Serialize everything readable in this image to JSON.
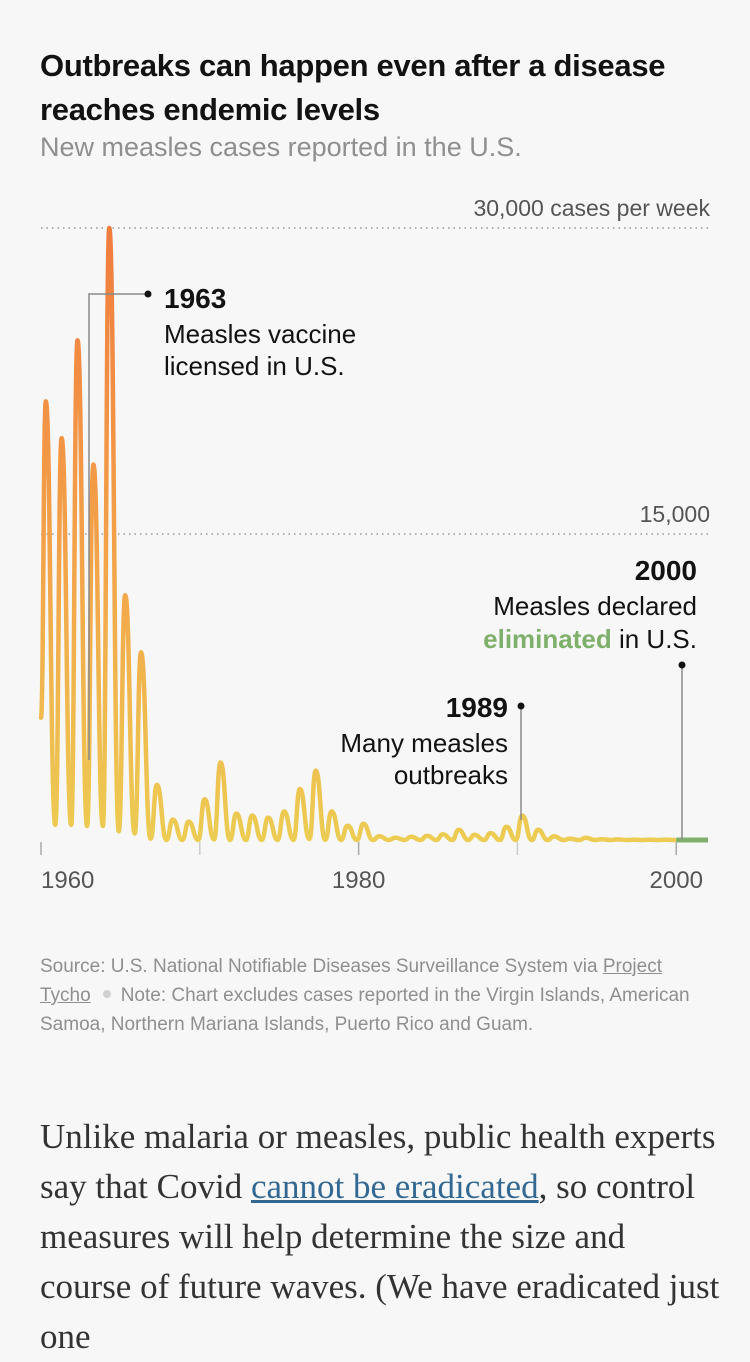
{
  "header": {
    "title": "Outbreaks can happen even after a disease reaches endemic levels",
    "subtitle": "New measles cases reported in the U.S."
  },
  "chart_data": {
    "type": "line",
    "title": "Outbreaks can happen even after a disease reaches endemic levels",
    "subtitle": "New measles cases reported in the U.S.",
    "ylim": [
      0,
      30000
    ],
    "xlim": [
      1960,
      2002
    ],
    "y_gridlines": [
      {
        "value": 30000,
        "label": "30,000 cases per week"
      },
      {
        "value": 15000,
        "label": "15,000"
      }
    ],
    "x_ticks": [
      {
        "value": 1960,
        "label": "1960"
      },
      {
        "value": 1980,
        "label": "1980"
      },
      {
        "value": 2000,
        "label": "2000"
      }
    ],
    "x_minor_ticks": [
      1970,
      1990
    ],
    "peaks": [
      {
        "x": 1960.3,
        "y": 21500
      },
      {
        "x": 1961.3,
        "y": 19700
      },
      {
        "x": 1962.3,
        "y": 24500
      },
      {
        "x": 1963.3,
        "y": 18400
      },
      {
        "x": 1964.3,
        "y": 30000
      },
      {
        "x": 1965.3,
        "y": 12000
      },
      {
        "x": 1966.3,
        "y": 9200
      },
      {
        "x": 1967.3,
        "y": 2700
      },
      {
        "x": 1968.3,
        "y": 1000
      },
      {
        "x": 1969.3,
        "y": 900
      },
      {
        "x": 1970.3,
        "y": 2000
      },
      {
        "x": 1971.3,
        "y": 3800
      },
      {
        "x": 1972.3,
        "y": 1300
      },
      {
        "x": 1973.3,
        "y": 1200
      },
      {
        "x": 1974.3,
        "y": 1100
      },
      {
        "x": 1975.3,
        "y": 1400
      },
      {
        "x": 1976.3,
        "y": 2500
      },
      {
        "x": 1977.3,
        "y": 3400
      },
      {
        "x": 1978.3,
        "y": 1400
      },
      {
        "x": 1979.3,
        "y": 700
      },
      {
        "x": 1980.3,
        "y": 800
      },
      {
        "x": 1981.3,
        "y": 180
      },
      {
        "x": 1982.3,
        "y": 120
      },
      {
        "x": 1983.3,
        "y": 160
      },
      {
        "x": 1984.3,
        "y": 210
      },
      {
        "x": 1985.3,
        "y": 280
      },
      {
        "x": 1986.3,
        "y": 500
      },
      {
        "x": 1987.3,
        "y": 260
      },
      {
        "x": 1988.3,
        "y": 340
      },
      {
        "x": 1989.3,
        "y": 650
      },
      {
        "x": 1990.3,
        "y": 1200
      },
      {
        "x": 1991.3,
        "y": 500
      },
      {
        "x": 1992.3,
        "y": 180
      },
      {
        "x": 1993.3,
        "y": 60
      },
      {
        "x": 1994.3,
        "y": 110
      },
      {
        "x": 1995.3,
        "y": 40
      },
      {
        "x": 1996.3,
        "y": 30
      },
      {
        "x": 1997.3,
        "y": 15
      },
      {
        "x": 1998.3,
        "y": 10
      },
      {
        "x": 1999.3,
        "y": 10
      }
    ],
    "baseline_after_2000": {
      "x_start": 2000,
      "x_end": 2002,
      "y": 0
    },
    "color_scale": {
      "high": "#f08b45",
      "low": "#ebc54e",
      "eliminated": "#7fb06b"
    },
    "annotations": [
      {
        "year": "1963",
        "lines": [
          "Measles vaccine",
          "licensed in U.S."
        ]
      },
      {
        "year": "1989",
        "lines": [
          "Many measles",
          "outbreaks"
        ]
      },
      {
        "year": "2000",
        "lines": [
          "Measles declared",
          "in U.S."
        ],
        "highlight": "eliminated"
      }
    ]
  },
  "source": {
    "text_prefix": "Source: U.S. National Notifiable Diseases Surveillance System via ",
    "link": "Project Tycho",
    "note": "Note: Chart excludes cases reported in the Virgin Islands, American Samoa, Northern Mariana Islands, Puerto Rico and Guam."
  },
  "body": {
    "p1_before": "Unlike malaria or measles, public health experts say that Covid ",
    "p1_link": "cannot be eradicated",
    "p1_after": ", so control measures will help determine the size and course of future waves. (We have eradicated just one"
  }
}
